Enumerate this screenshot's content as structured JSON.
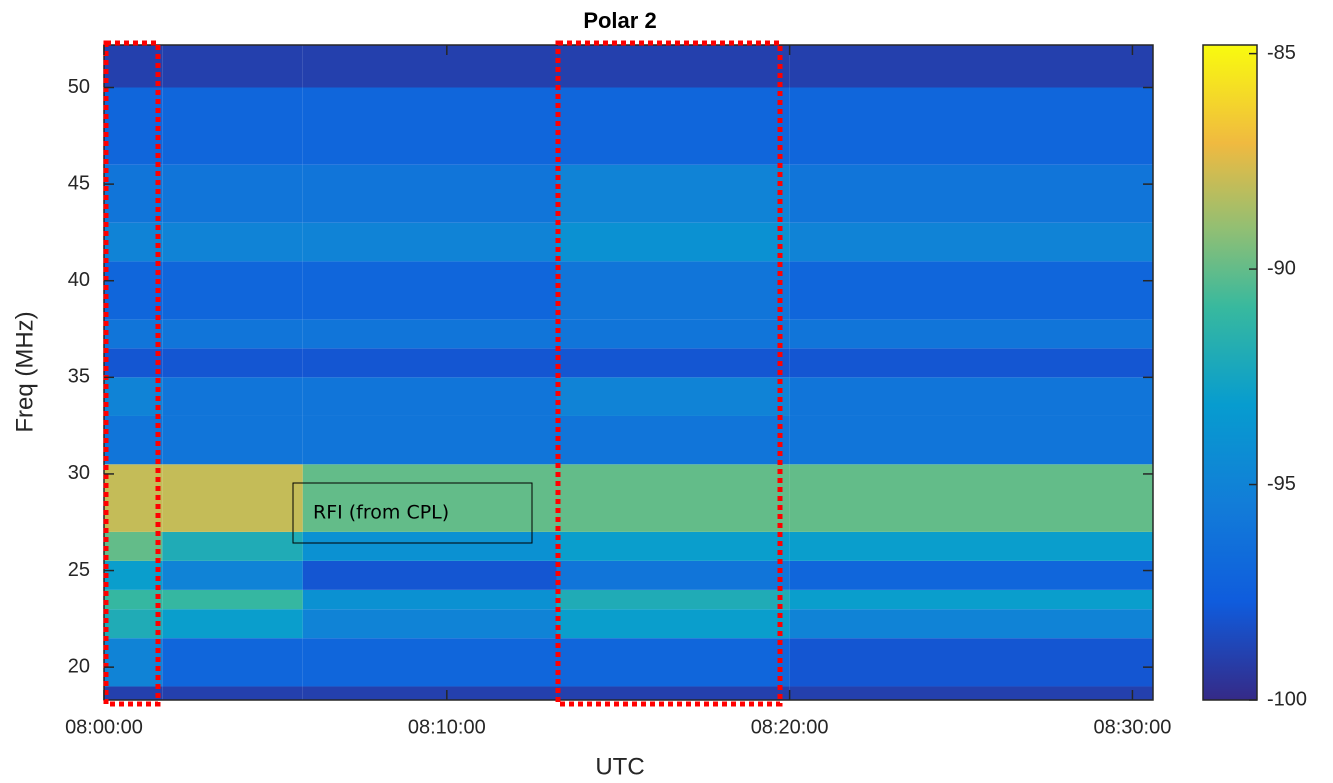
{
  "chart_data": {
    "type": "heatmap",
    "title": "Polar 2",
    "x_label": "UTC",
    "y_label": "Freq (MHz)",
    "xlim": [
      0,
      30.6
    ],
    "xticks": [
      {
        "value": 0,
        "label": "08:00:00"
      },
      {
        "value": 10,
        "label": "08:10:00"
      },
      {
        "value": 20,
        "label": "08:20:00"
      },
      {
        "value": 30,
        "label": "08:30:00"
      }
    ],
    "ylim": [
      18.3,
      52.2
    ],
    "yticks": [
      20,
      25,
      30,
      35,
      40,
      45,
      50
    ],
    "clim": [
      -100,
      -84.8
    ],
    "cticks": [
      -85,
      -90,
      -95,
      -100
    ],
    "annotation": "RFI (from  CPL)",
    "x_edges": [
      0,
      1.7,
      5.8,
      13.2,
      20.0,
      30.6
    ],
    "y_edges": [
      18.3,
      19,
      21.5,
      23,
      24,
      25.5,
      27,
      30.5,
      33,
      35,
      36.5,
      38,
      41,
      43,
      46,
      50,
      52.2
    ],
    "z": [
      [
        -99,
        -99,
        -99,
        -99,
        -99
      ],
      [
        -95,
        -97,
        -97,
        -97,
        -98
      ],
      [
        -92,
        -93,
        -95,
        -93,
        -95
      ],
      [
        -91,
        -91,
        -94,
        -92,
        -93
      ],
      [
        -93,
        -95,
        -98,
        -96,
        -97
      ],
      [
        -90,
        -92,
        -94,
        -93,
        -93
      ],
      [
        -88,
        -88,
        -90,
        -90,
        -90
      ],
      [
        -96,
        -96,
        -96,
        -96,
        -96
      ],
      [
        -95,
        -96,
        -96,
        -95,
        -96
      ],
      [
        -98,
        -98,
        -98,
        -98,
        -98
      ],
      [
        -96,
        -96,
        -96,
        -96,
        -96
      ],
      [
        -97,
        -97,
        -97,
        -96,
        -97
      ],
      [
        -95,
        -95,
        -95,
        -94,
        -95
      ],
      [
        -96,
        -96,
        -96,
        -95,
        -96
      ],
      [
        -97,
        -97,
        -97,
        -97,
        -97
      ],
      [
        -99,
        -99,
        -99,
        -99,
        -99
      ]
    ]
  }
}
